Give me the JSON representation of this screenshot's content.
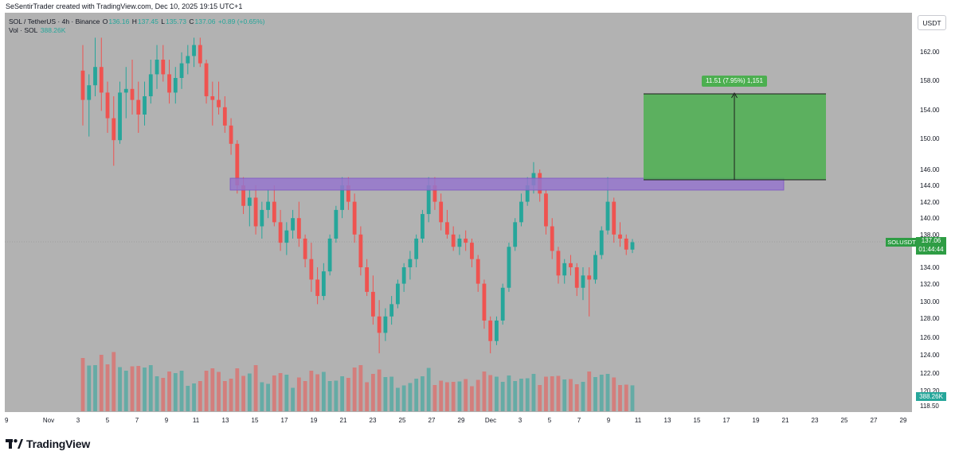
{
  "header": {
    "credit": "SeSentirTrader created with TradingView.com, Dec 10, 2025 19:15 UTC+1",
    "symbol": "SOL / TetherUS · 4h · Binance",
    "ohlc": {
      "o_label": "O",
      "o": "136.16",
      "h_label": "H",
      "h": "137.45",
      "l_label": "L",
      "l": "135.73",
      "c_label": "C",
      "c": "137.06",
      "change": "+0.89 (+0.65%)"
    },
    "vol_label": "Vol · SOL",
    "vol_value": "388.26K"
  },
  "currency_button": "USDT",
  "brand": "TradingView",
  "price_axis": {
    "tick_labels": [
      "162.00",
      "158.00",
      "154.00",
      "150.00",
      "146.00",
      "144.00",
      "142.00",
      "140.00",
      "138.00",
      "136.00",
      "134.00",
      "132.00",
      "130.00",
      "128.00",
      "126.00",
      "124.00",
      "122.00",
      "120.20",
      "118.50"
    ],
    "current_symbol": "SOLUSDT",
    "current_price": "137.06",
    "countdown": "01:44:44",
    "volume_tag": "388.26K"
  },
  "time_axis": {
    "tick_labels": [
      "Nov",
      "3",
      "5",
      "7",
      "9",
      "11",
      "13",
      "15",
      "17",
      "19",
      "21",
      "23",
      "25",
      "27",
      "29",
      "Dec",
      "3",
      "5",
      "7",
      "9",
      "11",
      "13",
      "15",
      "17",
      "19",
      "21",
      "23",
      "25",
      "27",
      "29"
    ],
    "edge_label": "9"
  },
  "annotations": {
    "range_label": "11.51 (7.95%) 1,151",
    "resistance_zone": {
      "low": 143.5,
      "high": 145.0,
      "color": "#9575cd"
    },
    "target_box": {
      "low": 145.0,
      "high": 156.3,
      "color": "#4caf50"
    }
  },
  "colors": {
    "up": "#26a69a",
    "down": "#ef5350",
    "chart_bg": "#b2b2b2"
  },
  "chart_data": {
    "type": "candlestick",
    "title": "SOL / TetherUS · 4h · Binance",
    "ylim": [
      118,
      164
    ],
    "y_log": true,
    "grid": false,
    "x_range": [
      "2025-10-30",
      "2025-12-30"
    ],
    "candles_4h_approx": [
      [
        159.5,
        163,
        152,
        155.5
      ],
      [
        155.5,
        159,
        150.5,
        157.5
      ],
      [
        157.5,
        164,
        156,
        160
      ],
      [
        160,
        164,
        154,
        156.5
      ],
      [
        156.5,
        158,
        151,
        153
      ],
      [
        153,
        156,
        146.5,
        150
      ],
      [
        150,
        158,
        149.5,
        156.5
      ],
      [
        156.5,
        160,
        153,
        157
      ],
      [
        157,
        161,
        153.5,
        155.5
      ],
      [
        155.5,
        158,
        151,
        153.5
      ],
      [
        153.5,
        158,
        152,
        156
      ],
      [
        156,
        161,
        155,
        159
      ],
      [
        159,
        163,
        157,
        161
      ],
      [
        161,
        163,
        158,
        159
      ],
      [
        159,
        161,
        155,
        156.5
      ],
      [
        156.5,
        160,
        155,
        158.5
      ],
      [
        158.5,
        162,
        157,
        160.5
      ],
      [
        160.5,
        163,
        159,
        161.5
      ],
      [
        161.5,
        164,
        160,
        163
      ],
      [
        163,
        164,
        160,
        160.5
      ],
      [
        160.5,
        161,
        155,
        156
      ],
      [
        156,
        158,
        152,
        155.5
      ],
      [
        155.5,
        158,
        153.5,
        154.5
      ],
      [
        154.5,
        156,
        151,
        152
      ],
      [
        152,
        153,
        148,
        149.5
      ],
      [
        149.5,
        150,
        143,
        144
      ],
      [
        144,
        145,
        140.5,
        141.5
      ],
      [
        141.5,
        143.5,
        139,
        142.5
      ],
      [
        142.5,
        144,
        138,
        139
      ],
      [
        139,
        142,
        137.5,
        141
      ],
      [
        141,
        143.5,
        140,
        142
      ],
      [
        142,
        144,
        139,
        139.5
      ],
      [
        139.5,
        141,
        136,
        137
      ],
      [
        137,
        139.5,
        135.5,
        138.5
      ],
      [
        138.5,
        141,
        137.5,
        140
      ],
      [
        140,
        142,
        136.5,
        137.5
      ],
      [
        137.5,
        138,
        134,
        135
      ],
      [
        135,
        137,
        131,
        132.5
      ],
      [
        132.5,
        134,
        129.5,
        130.5
      ],
      [
        130.5,
        134.5,
        130,
        133.5
      ],
      [
        133.5,
        138,
        133,
        137.5
      ],
      [
        137.5,
        141.5,
        137,
        141
      ],
      [
        141,
        145,
        140,
        144
      ],
      [
        144,
        145,
        141,
        142
      ],
      [
        142,
        143,
        137,
        138
      ],
      [
        138,
        139,
        133,
        134
      ],
      [
        134,
        135,
        130.5,
        131
      ],
      [
        131,
        133,
        127,
        128
      ],
      [
        128,
        130,
        123.5,
        126
      ],
      [
        126,
        129,
        125,
        128
      ],
      [
        128,
        130.5,
        127,
        129.5
      ],
      [
        129.5,
        132.5,
        129,
        132
      ],
      [
        132,
        134.5,
        131,
        134
      ],
      [
        134,
        136,
        132.5,
        135
      ],
      [
        135,
        138,
        134,
        137.5
      ],
      [
        137.5,
        141,
        137,
        140.5
      ],
      [
        140.5,
        145,
        139.5,
        144
      ],
      [
        144,
        145,
        141,
        142
      ],
      [
        142,
        143,
        138.5,
        139.5
      ],
      [
        139.5,
        141,
        137.5,
        138
      ],
      [
        138,
        139,
        136,
        136.5
      ],
      [
        136.5,
        138,
        135.5,
        137.5
      ],
      [
        137.5,
        138.5,
        136,
        137
      ],
      [
        137,
        137.5,
        134,
        135
      ],
      [
        135,
        135.5,
        131,
        132
      ],
      [
        132,
        132.5,
        126.5,
        127.5
      ],
      [
        127.5,
        128,
        123.5,
        125
      ],
      [
        125,
        128,
        124.5,
        127.5
      ],
      [
        127.5,
        132,
        127,
        131.5
      ],
      [
        131.5,
        137,
        131,
        136.5
      ],
      [
        136.5,
        140,
        136,
        139.5
      ],
      [
        139.5,
        143,
        139,
        142
      ],
      [
        142,
        145,
        141.5,
        144
      ],
      [
        144,
        147,
        143,
        145.5
      ],
      [
        145.5,
        146,
        142,
        143
      ],
      [
        143,
        143.5,
        138,
        139
      ],
      [
        139,
        140,
        135,
        136
      ],
      [
        136,
        136.5,
        132,
        133
      ],
      [
        133,
        135,
        132,
        134.5
      ],
      [
        134.5,
        135.5,
        133,
        134
      ],
      [
        134,
        134.5,
        130.5,
        131.5
      ],
      [
        131.5,
        134,
        130,
        133
      ],
      [
        133,
        134,
        128,
        132.5
      ],
      [
        132.5,
        136,
        132,
        135.5
      ],
      [
        135.5,
        139,
        135,
        138.5
      ],
      [
        138.5,
        145,
        138,
        142
      ],
      [
        142,
        142.5,
        137,
        138
      ],
      [
        138,
        139.5,
        136.5,
        137.5
      ],
      [
        137.5,
        138,
        135.5,
        136.16
      ],
      [
        136.16,
        137.45,
        135.73,
        137.06
      ]
    ],
    "price_ticks": [
      162,
      158,
      154,
      150,
      146,
      144,
      142,
      140,
      138,
      136,
      134,
      132,
      130,
      128,
      126,
      124,
      122,
      120.2,
      118.5
    ]
  }
}
